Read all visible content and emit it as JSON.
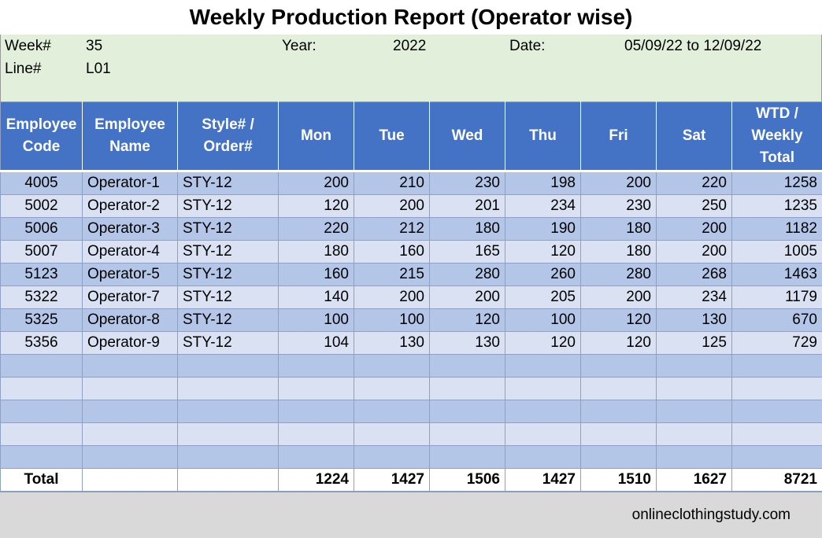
{
  "title": "Weekly Production Report (Operator wise)",
  "info": {
    "week_label": "Week#",
    "week_value": "35",
    "year_label": "Year:",
    "year_value": "2022",
    "date_label": "Date:",
    "date_value": "05/09/22 to 12/09/22",
    "line_label": "Line#",
    "line_value": "L01"
  },
  "columns": {
    "employee_code": "Employee Code",
    "employee_name": "Employee Name",
    "style_order": "Style# / Order#",
    "mon": "Mon",
    "tue": "Tue",
    "wed": "Wed",
    "thu": "Thu",
    "fri": "Fri",
    "sat": "Sat",
    "total": "WTD / Weekly Total"
  },
  "rows": [
    {
      "code": "4005",
      "name": "Operator-1",
      "style": "STY-12",
      "mon": "200",
      "tue": "210",
      "wed": "230",
      "thu": "198",
      "fri": "200",
      "sat": "220",
      "total": "1258"
    },
    {
      "code": "5002",
      "name": "Operator-2",
      "style": "STY-12",
      "mon": "120",
      "tue": "200",
      "wed": "201",
      "thu": "234",
      "fri": "230",
      "sat": "250",
      "total": "1235"
    },
    {
      "code": "5006",
      "name": "Operator-3",
      "style": "STY-12",
      "mon": "220",
      "tue": "212",
      "wed": "180",
      "thu": "190",
      "fri": "180",
      "sat": "200",
      "total": "1182"
    },
    {
      "code": "5007",
      "name": "Operator-4",
      "style": "STY-12",
      "mon": "180",
      "tue": "160",
      "wed": "165",
      "thu": "120",
      "fri": "180",
      "sat": "200",
      "total": "1005"
    },
    {
      "code": "5123",
      "name": "Operator-5",
      "style": "STY-12",
      "mon": "160",
      "tue": "215",
      "wed": "280",
      "thu": "260",
      "fri": "280",
      "sat": "268",
      "total": "1463"
    },
    {
      "code": "5322",
      "name": "Operator-7",
      "style": "STY-12",
      "mon": "140",
      "tue": "200",
      "wed": "200",
      "thu": "205",
      "fri": "200",
      "sat": "234",
      "total": "1179"
    },
    {
      "code": "5325",
      "name": "Operator-8",
      "style": "STY-12",
      "mon": "100",
      "tue": "100",
      "wed": "120",
      "thu": "100",
      "fri": "120",
      "sat": "130",
      "total": "670"
    },
    {
      "code": "5356",
      "name": "Operator-9",
      "style": "STY-12",
      "mon": "104",
      "tue": "130",
      "wed": "130",
      "thu": "120",
      "fri": "120",
      "sat": "125",
      "total": "729"
    }
  ],
  "totals": {
    "label": "Total",
    "mon": "1224",
    "tue": "1427",
    "wed": "1506",
    "thu": "1427",
    "fri": "1510",
    "sat": "1627",
    "total": "8721"
  },
  "footer": "onlineclothingstudy.com",
  "colors": {
    "header_blue": "#4472c4",
    "row_band_dark": "#b4c6e7",
    "row_band_light": "#d9e1f2",
    "info_green": "#e2efda",
    "footer_gray": "#d9d9d9"
  }
}
